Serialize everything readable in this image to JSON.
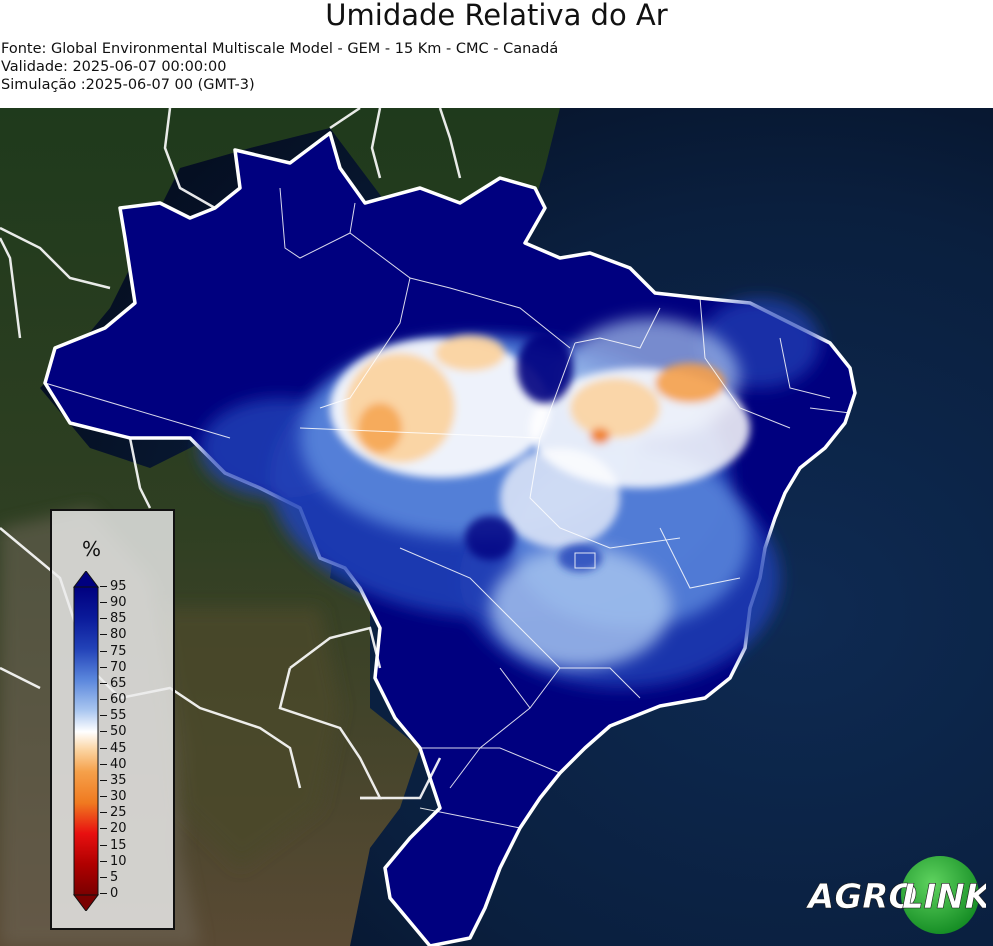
{
  "header": {
    "title": "Umidade Relativa do Ar",
    "source": "Fonte: Global Environmental Multiscale Model - GEM - 15 Km - CMC - Canadá",
    "validity": "Validade: 2025-06-07 00:00:00",
    "simulation": "Simulação :2025-06-07 00 (GMT-3)"
  },
  "legend": {
    "unit": "%",
    "ticks": [
      "95",
      "90",
      "85",
      "80",
      "75",
      "70",
      "65",
      "60",
      "55",
      "50",
      "45",
      "40",
      "35",
      "30",
      "25",
      "20",
      "15",
      "10",
      "5",
      "0"
    ],
    "colors": {
      "very_high": "#00007f",
      "high": "#2242b8",
      "mid_high": "#5a86dc",
      "light": "#a9c6f0",
      "white": "#ffffff",
      "light_orange": "#fbd3a0",
      "orange": "#f5a04a",
      "red": "#e81010",
      "dark_red": "#7a0000"
    }
  },
  "logo": {
    "text_left": "AGRO",
    "text_right": "LINK"
  }
}
